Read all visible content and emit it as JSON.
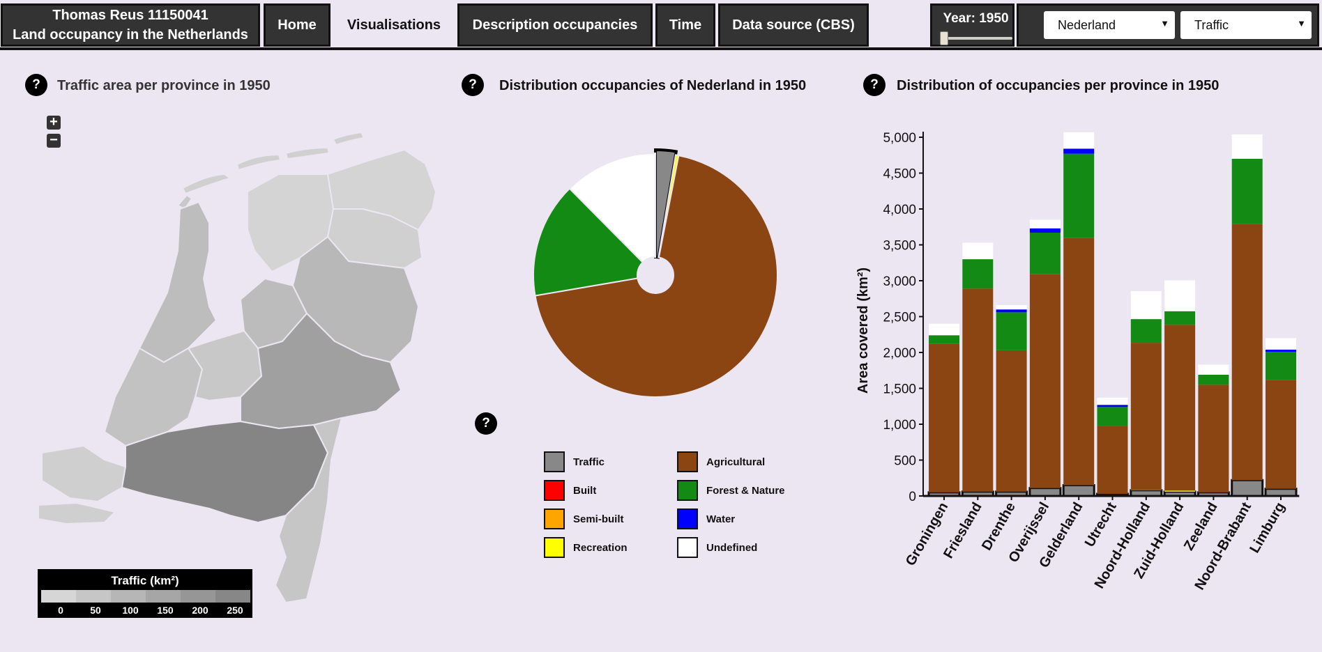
{
  "nav": {
    "brand_line1": "Thomas Reus 11150041",
    "brand_line2": "Land occupancy in the Netherlands",
    "items": [
      {
        "label": "Home"
      },
      {
        "label": "Visualisations"
      },
      {
        "label": "Description occupancies"
      },
      {
        "label": "Time"
      },
      {
        "label": "Data source (CBS)"
      }
    ],
    "active": "Visualisations",
    "year_label": "Year: 1950",
    "year_value": 1950,
    "region_select": "Nederland",
    "type_select": "Traffic"
  },
  "map": {
    "help": "?",
    "title": "Traffic area per province in 1950",
    "zoom_in": "+",
    "zoom_out": "−",
    "legend_title": "Traffic (km²)",
    "legend_ticks": [
      "0",
      "50",
      "100",
      "150",
      "200",
      "250"
    ],
    "legend_colors": [
      "#d6d6d6",
      "#c6c6c6",
      "#b6b6b6",
      "#a6a6a6",
      "#969696",
      "#878787"
    ]
  },
  "pie": {
    "help": "?",
    "title": "Distribution occupancies of Nederland in 1950",
    "legend_help": "?",
    "legend": [
      {
        "label": "Traffic",
        "color": "#888888"
      },
      {
        "label": "Agricultural",
        "color": "#8b4513"
      },
      {
        "label": "Built",
        "color": "#ff0000"
      },
      {
        "label": "Forest & Nature",
        "color": "#138a13"
      },
      {
        "label": "Semi-built",
        "color": "#ffa500"
      },
      {
        "label": "Water",
        "color": "#0000ff"
      },
      {
        "label": "Recreation",
        "color": "#ffff00"
      },
      {
        "label": "Undefined",
        "color": "#ffffff"
      }
    ]
  },
  "bar": {
    "help": "?",
    "title": "Distribution of occupancies per province in 1950"
  },
  "chart_data": [
    {
      "type": "pie",
      "title": "Distribution occupancies of Nederland in 1950",
      "labels": [
        "Traffic",
        "Recreation",
        "Agricultural",
        "Forest & Nature",
        "Undefined"
      ],
      "values": [
        2.6,
        0.4,
        68,
        15,
        12.2
      ],
      "colors": [
        "#888888",
        "#ffff00",
        "#8b4513",
        "#138a13",
        "#ffffff"
      ],
      "highlighted": "Traffic"
    },
    {
      "type": "bar",
      "stacked": true,
      "title": "Distribution of occupancies per province in 1950",
      "ylabel": "Area covered (km²)",
      "ylim": [
        0,
        5000
      ],
      "yticks": [
        "0",
        "500",
        "1,000",
        "1,500",
        "2,000",
        "2,500",
        "3,000",
        "3,500",
        "4,000",
        "4,500",
        "5,000"
      ],
      "categories": [
        "Groningen",
        "Friesland",
        "Drenthe",
        "Overijssel",
        "Gelderland",
        "Utrecht",
        "Noord-Holland",
        "Zuid-Holland",
        "Zeeland",
        "Noord-Brabant",
        "Limburg"
      ],
      "series": [
        {
          "name": "Traffic",
          "color": "#888888",
          "values": [
            50,
            60,
            60,
            110,
            150,
            30,
            80,
            60,
            50,
            220,
            100
          ]
        },
        {
          "name": "Recreation",
          "color": "#ffff00",
          "values": [
            0,
            0,
            0,
            0,
            0,
            0,
            5,
            15,
            0,
            0,
            0
          ]
        },
        {
          "name": "Agricultural",
          "color": "#8b4513",
          "values": [
            2070,
            2830,
            1970,
            2980,
            3450,
            950,
            2050,
            2310,
            1500,
            3570,
            1520
          ]
        },
        {
          "name": "Forest & Nature",
          "color": "#138a13",
          "values": [
            120,
            410,
            530,
            580,
            1170,
            260,
            330,
            190,
            140,
            910,
            390
          ]
        },
        {
          "name": "Water",
          "color": "#0000ff",
          "values": [
            0,
            0,
            40,
            60,
            70,
            30,
            0,
            0,
            0,
            0,
            30
          ]
        },
        {
          "name": "Undefined",
          "color": "#ffffff",
          "values": [
            160,
            230,
            60,
            120,
            230,
            100,
            390,
            430,
            140,
            340,
            160
          ]
        }
      ]
    }
  ]
}
